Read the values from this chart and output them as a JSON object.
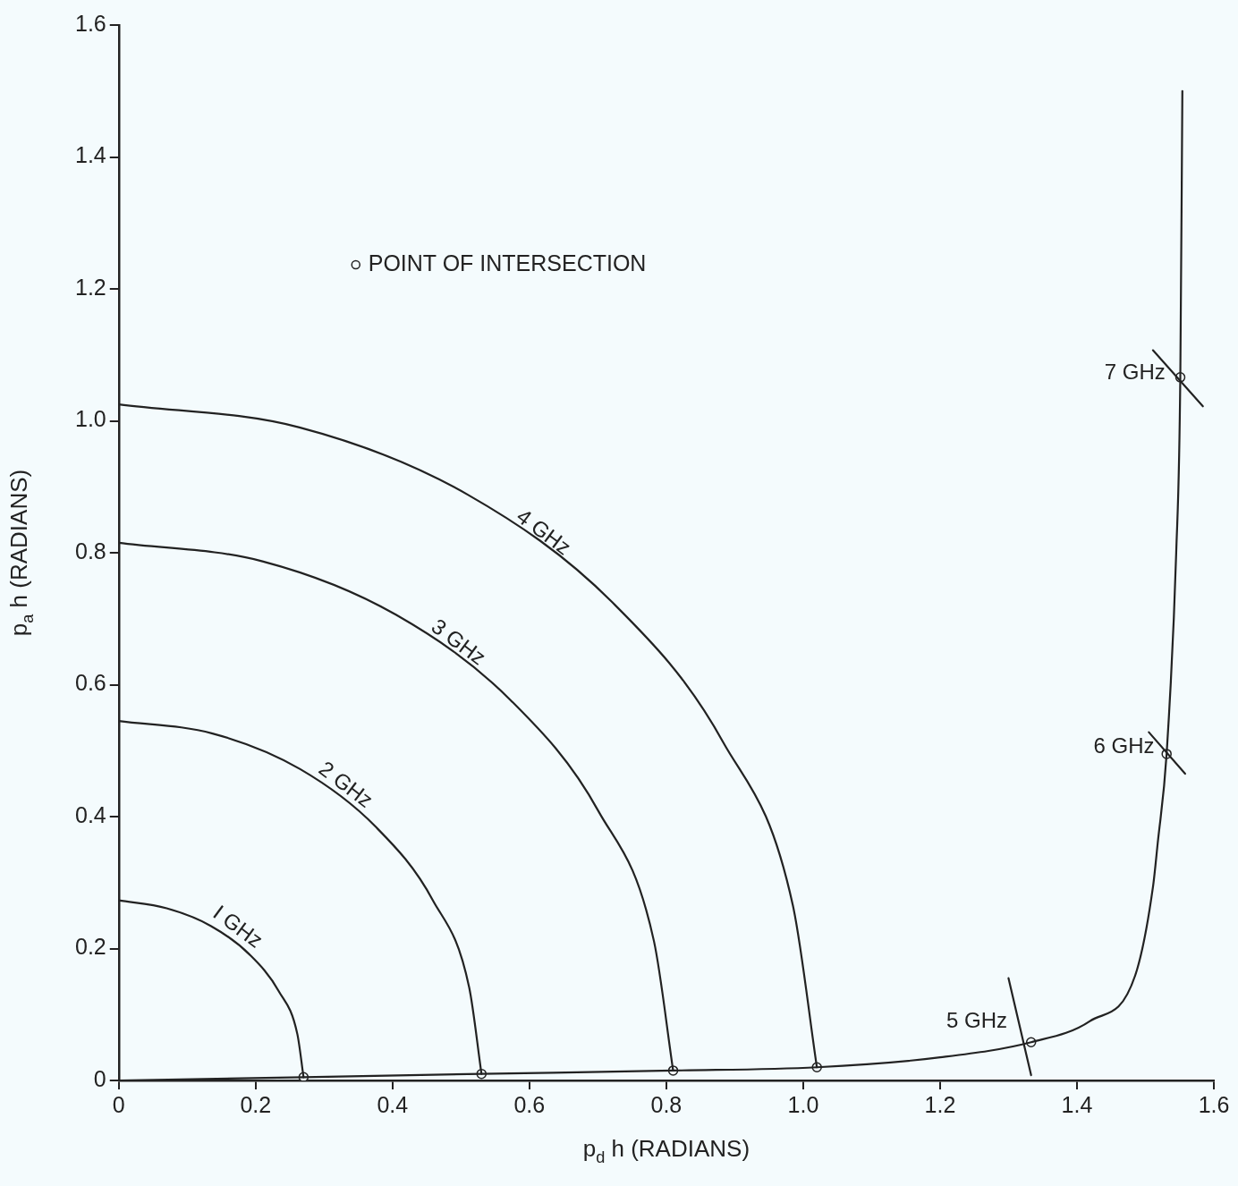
{
  "chart_data": {
    "type": "line",
    "xlabel": "p$_{d}$ h (RADIANS)",
    "ylabel": "p$_{a}$ h (RADIANS)",
    "xlim": [
      0,
      1.6
    ],
    "ylim": [
      0,
      1.6
    ],
    "xticks": [
      0,
      0.2,
      0.4,
      0.6,
      0.8,
      {
        "value": 1,
        "label": "1.0"
      },
      1.2,
      1.4,
      1.6
    ],
    "yticks": [
      0,
      0.2,
      0.4,
      0.6,
      0.8,
      {
        "value": 1,
        "label": "1.0"
      },
      1.2,
      1.4,
      1.6
    ],
    "grid": false,
    "legend": "top left",
    "marker": "none",
    "line_style": "solid",
    "series": [
      {
        "name": "I GHz",
        "color": "#222222",
        "x": [
          0,
          0.07,
          0.135,
          0.191,
          0.234,
          0.261,
          0.27
        ],
        "values": [
          0.273,
          0.261,
          0.234,
          0.191,
          0.135,
          0.07,
          0.005
        ]
      },
      {
        "name": "2 GHz",
        "color": "#222222",
        "x": [
          0,
          0.137,
          0.265,
          0.375,
          0.459,
          0.512,
          0.53
        ],
        "values": [
          0.545,
          0.526,
          0.472,
          0.385,
          0.273,
          0.141,
          0.01
        ]
      },
      {
        "name": "3 GHz",
        "color": "#222222",
        "x": [
          0,
          0.21,
          0.405,
          0.573,
          0.701,
          0.782,
          0.81
        ],
        "values": [
          0.815,
          0.787,
          0.706,
          0.576,
          0.408,
          0.211,
          0.015
        ]
      },
      {
        "name": "4 GHz",
        "color": "#222222",
        "x": [
          0,
          0.264,
          0.51,
          0.721,
          0.883,
          0.985,
          1.02
        ],
        "values": [
          1.025,
          0.99,
          0.888,
          0.725,
          0.513,
          0.265,
          0.02
        ]
      },
      {
        "color": "#222222",
        "x": [
          0,
          0.27,
          0.53,
          0.81,
          1.02,
          1.2,
          1.333,
          1.419,
          1.485,
          1.511,
          1.518,
          1.531,
          1.545,
          1.551,
          1.554
        ],
        "values": [
          0,
          0.005,
          0.01,
          0.015,
          0.02,
          0.035,
          0.058,
          0.09,
          0.159,
          0.293,
          0.36,
          0.495,
          0.8,
          1.066,
          1.5
        ]
      },
      {
        "name": "5 GHz",
        "color": "#222222",
        "x": [
          1.3,
          1.333
        ],
        "values": [
          0.155,
          0.008
        ]
      },
      {
        "name": "6 GHz",
        "color": "#222222",
        "x": [
          1.505,
          1.558
        ],
        "values": [
          0.528,
          0.465
        ]
      },
      {
        "name": "7 GHz",
        "color": "#222222",
        "x": [
          1.511,
          1.584
        ],
        "values": [
          1.107,
          1.022
        ]
      },
      {
        "type": "scatter",
        "name": "POINT OF INTERSECTION",
        "marker": "circle",
        "color": "#222222",
        "x": [
          0.27,
          0.53,
          0.81,
          1.02,
          1.333,
          1.531,
          1.551
        ],
        "values": [
          0.005,
          0.01,
          0.015,
          0.02,
          0.058,
          0.495,
          1.066
        ]
      }
    ]
  }
}
